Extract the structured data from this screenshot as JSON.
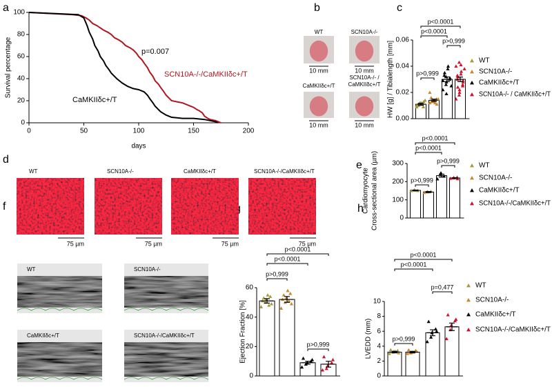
{
  "chart_data": [
    {
      "type": "line",
      "label": "a",
      "xlabel": "days",
      "ylabel": "Survival percentage",
      "annotation": "p=0.007",
      "xlim": [
        0,
        200
      ],
      "xticks": [
        0,
        50,
        100,
        150,
        200
      ],
      "ylim": [
        0,
        100
      ],
      "yticks": [
        0,
        20,
        40,
        60,
        80,
        100
      ],
      "series": [
        {
          "name": "SCN10A-/-/CaMKIIδc+/T",
          "color": "#b2141e",
          "x": [
            0,
            40,
            48,
            52,
            55,
            58,
            62,
            65,
            68,
            72,
            75,
            78,
            82,
            85,
            88,
            92,
            95,
            98,
            100,
            103,
            105,
            108,
            110,
            113,
            115,
            118,
            120,
            123,
            125,
            128,
            130,
            135,
            140,
            145,
            150,
            153,
            155,
            158,
            160,
            163,
            165,
            170,
            175
          ],
          "values": [
            100,
            98,
            97,
            95,
            93,
            90,
            88,
            86,
            84,
            82,
            80,
            77,
            75,
            73,
            70,
            68,
            66,
            63,
            60,
            57,
            54,
            50,
            46,
            42,
            38,
            35,
            32,
            28,
            25,
            22,
            20,
            19,
            18,
            16,
            14,
            12,
            11,
            9,
            6,
            4,
            3,
            2,
            0
          ]
        },
        {
          "name": "CaMKIIδc+/T",
          "color": "#000000",
          "x": [
            0,
            45,
            50,
            53,
            55,
            58,
            60,
            63,
            65,
            68,
            70,
            73,
            75,
            78,
            80,
            85,
            90,
            95,
            100,
            105,
            108,
            110,
            113,
            115,
            118,
            120,
            125,
            130,
            140,
            150,
            160,
            165,
            170,
            172
          ],
          "values": [
            100,
            98,
            95,
            88,
            82,
            76,
            70,
            65,
            60,
            56,
            52,
            48,
            45,
            42,
            40,
            36,
            33,
            31,
            30,
            28,
            25,
            22,
            18,
            15,
            12,
            10,
            7,
            5,
            4,
            4,
            3,
            2,
            1,
            0
          ]
        }
      ]
    },
    {
      "type": "bar",
      "label": "c",
      "ylabel": [
        "HW [g] / Tibialength [mm]"
      ],
      "ylim": [
        0,
        0.06
      ],
      "yticks": [
        {
          "value": 0,
          "label": "0.00"
        },
        {
          "value": 0.02,
          "label": "0.02"
        },
        {
          "value": 0.04,
          "label": "0.04"
        },
        {
          "value": 0.06,
          "label": "0.06"
        }
      ],
      "comparisons": [
        "p>0,999",
        "p<0.0001",
        "p<0.0001",
        "p>0,999"
      ],
      "series": [
        {
          "name": "WT",
          "color": "#a39a3c",
          "mean": 0.011,
          "sem": 0.0008,
          "points": [
            0.01,
            0.011,
            0.012,
            0.009,
            0.013,
            0.011,
            0.01,
            0.012,
            0.011,
            0.014,
            0.009,
            0.012
          ]
        },
        {
          "name": "SCN10A-/-",
          "color": "#c58a2e",
          "mean": 0.014,
          "sem": 0.0009,
          "points": [
            0.012,
            0.014,
            0.013,
            0.015,
            0.011,
            0.016,
            0.013,
            0.014,
            0.012,
            0.015,
            0.02,
            0.013,
            0.014
          ]
        },
        {
          "name": "CaMKIIδc+/T",
          "color": "#000000",
          "mean": 0.03,
          "sem": 0.0018,
          "points": [
            0.022,
            0.026,
            0.028,
            0.03,
            0.031,
            0.033,
            0.035,
            0.038,
            0.04,
            0.025,
            0.029,
            0.032,
            0.019
          ]
        },
        {
          "name": "SCN10A-/- / CaMKIIδc+/T",
          "color": "#d0112b",
          "mean": 0.03,
          "sem": 0.0017,
          "points": [
            0.015,
            0.018,
            0.022,
            0.025,
            0.028,
            0.03,
            0.032,
            0.034,
            0.036,
            0.038,
            0.04,
            0.043,
            0.02,
            0.026,
            0.029,
            0.033,
            0.024,
            0.041
          ]
        }
      ]
    },
    {
      "type": "bar",
      "label": "e",
      "ylabel": [
        "Cardiomyocyte",
        "Cross-sectional area (µm)"
      ],
      "ylim": [
        0,
        300
      ],
      "yticks": [
        0,
        100,
        200,
        300
      ],
      "comparisons": [
        "p>0,999",
        "p<0.0001",
        "p<0.0001",
        "p>0,999"
      ],
      "series": [
        {
          "name": "WT",
          "color": "#a39a3c",
          "mean": 152,
          "sem": 2,
          "points": [
            150,
            155,
            152,
            151
          ]
        },
        {
          "name": "SCN10A-/-",
          "color": "#c58a2e",
          "mean": 143,
          "sem": 3,
          "points": [
            140,
            145,
            143,
            146
          ]
        },
        {
          "name": "CaMKIIδc+/T",
          "color": "#000000",
          "mean": 233,
          "sem": 8,
          "points": [
            215,
            240,
            248,
            230
          ]
        },
        {
          "name": "SCN10A-/-/CaMKIIδc+/T",
          "color": "#d0112b",
          "mean": 220,
          "sem": 2,
          "points": [
            218,
            222,
            220,
            224,
            216
          ]
        }
      ]
    },
    {
      "type": "bar",
      "label": "g",
      "ylabel": [
        "Ejection Fraction [%]"
      ],
      "ylim": [
        0,
        60
      ],
      "yticks": [
        0,
        20,
        40,
        60
      ],
      "comparisons": [
        "p>0,999",
        "p<0.0001",
        "p<0.0001",
        "p>0,999"
      ],
      "series": [
        {
          "color": "#a39a3c",
          "mean": 51,
          "sem": 1.5,
          "points": [
            47,
            50,
            52,
            54,
            49,
            51,
            53,
            55,
            48
          ]
        },
        {
          "color": "#c58a2e",
          "mean": 52,
          "sem": 2,
          "points": [
            46,
            50,
            53,
            56,
            49,
            52,
            55,
            58,
            51
          ]
        },
        {
          "color": "#000000",
          "mean": 9,
          "sem": 1,
          "points": [
            6,
            8,
            9,
            10,
            11,
            12
          ]
        },
        {
          "color": "#d0112b",
          "mean": 8,
          "sem": 2,
          "points": [
            4,
            5,
            7,
            9,
            11,
            13
          ]
        }
      ]
    },
    {
      "type": "bar",
      "label": "h",
      "ylabel": [
        "LVEDD (mm)"
      ],
      "ylim": [
        0,
        10
      ],
      "yticks": [
        0,
        2,
        4,
        6,
        8,
        10
      ],
      "comparisons": [
        "p>0,999",
        "p<0.0001",
        "p<0.0001",
        "p=0,477"
      ],
      "series": [
        {
          "name": "WT",
          "color": "#a39a3c",
          "mean": 3.2,
          "sem": 0.1,
          "points": [
            3.0,
            3.2,
            3.3,
            3.4,
            3.1,
            3.5,
            3.2,
            3.3
          ]
        },
        {
          "name": "SCN10A-/-",
          "color": "#c58a2e",
          "mean": 3.2,
          "sem": 0.1,
          "points": [
            3.0,
            3.1,
            3.2,
            3.4,
            3.3,
            3.5,
            3.1,
            3.2
          ]
        },
        {
          "name": "CaMKIIδc+/T",
          "color": "#000000",
          "mean": 5.8,
          "sem": 0.4,
          "points": [
            4.6,
            5.2,
            5.8,
            6.3,
            6.0,
            7.3
          ]
        },
        {
          "name": "SCN10A-/-/CaMKIIδc+/T",
          "color": "#d0112b",
          "mean": 6.6,
          "sem": 0.5,
          "points": [
            5.0,
            6.2,
            6.8,
            7.4,
            7.6,
            8.2
          ]
        }
      ]
    }
  ],
  "images": {
    "b": {
      "label": "b",
      "captions": [
        [
          "WT"
        ],
        [
          "SCN10A-/-"
        ],
        [
          "CaMKIIδc+/T"
        ],
        [
          "SCN10A-/- /",
          "CaMKIIδc+/T"
        ]
      ],
      "scales": [
        "10 mm",
        "10 mm",
        "10 mm",
        "10 mm"
      ]
    },
    "d": {
      "label": "d",
      "captions": [
        "WT",
        "SCN10A-/-",
        "CaMKIIδc+/T",
        "SCN10A-/-/CaMKIIδc+/T"
      ],
      "scales": [
        "75 µm",
        "75 µm",
        "75 µm",
        "75 µm"
      ]
    },
    "f": {
      "label": "f",
      "captions": [
        "WT",
        "SCN10A-/-",
        "CaMKIIδc+/T",
        "SCN10A-/-/CaMKIIδc+/T"
      ]
    }
  }
}
